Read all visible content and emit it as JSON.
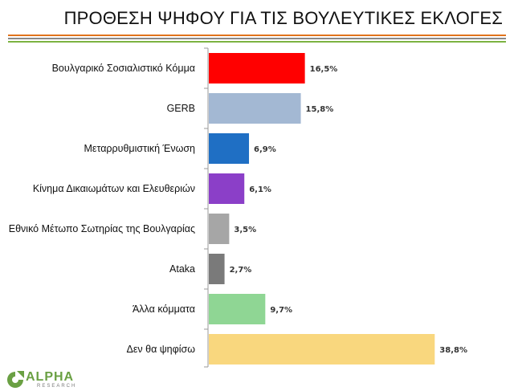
{
  "header": {
    "title": "ΠΡΟΘΕΣΗ ΨΗΦΟΥ ΓΙΑ ΤΙΣ ΒΟΥΛΕΥΤΙΚΕΣ ΕΚΛΟΓΕΣ"
  },
  "colors": {
    "rules": [
      "#e0731c",
      "#8a8a8a",
      "#7cb342"
    ],
    "logo": "#6aa043"
  },
  "logo": {
    "name": "ALPHA",
    "sub": "RESEARCH",
    "icon": "alpha-research-logo-icon"
  },
  "chart_data": {
    "type": "bar",
    "orientation": "horizontal",
    "title": "",
    "xlabel": "",
    "ylabel": "",
    "xlim": [
      0,
      40
    ],
    "grid": false,
    "categories": [
      "Βουλγαρικό Σοσιαλιστικό Κόμμα",
      "GERB",
      "Μεταρρυθμιστική Ένωση",
      "Κίνημα Δικαιωμάτων και Ελευθεριών",
      "Εθνικό Μέτωπο Σωτηρίας της Βουλγαρίας",
      "Ataka",
      "Άλλα κόμματα",
      "Δεν θα ψηφίσω"
    ],
    "values": [
      16.5,
      15.8,
      6.9,
      6.1,
      3.5,
      2.7,
      9.7,
      38.8
    ],
    "value_labels": [
      "16,5%",
      "15,8%",
      "6,9%",
      "6,1%",
      "3,5%",
      "2,7%",
      "9,7%",
      "38,8%"
    ],
    "bar_colors": [
      "#ff0000",
      "#a3b8d3",
      "#1f6fc4",
      "#8b3fc8",
      "#a6a6a6",
      "#7a7a7a",
      "#8fd694",
      "#f9d77e"
    ]
  }
}
